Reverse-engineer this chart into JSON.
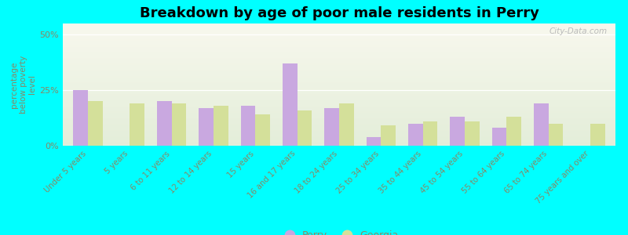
{
  "title": "Breakdown by age of poor male residents in Perry",
  "ylabel": "percentage\nbelow poverty\nlevel",
  "background_color": "#00ffff",
  "categories": [
    "Under 5 years",
    "5 years",
    "6 to 11 years",
    "12 to 14 years",
    "15 years",
    "16 and 17 years",
    "18 to 24 years",
    "25 to 34 years",
    "35 to 44 years",
    "45 to 54 years",
    "55 to 64 years",
    "65 to 74 years",
    "75 years and over"
  ],
  "perry_values": [
    25,
    0,
    20,
    17,
    18,
    37,
    17,
    4,
    10,
    13,
    8,
    19,
    0
  ],
  "georgia_values": [
    20,
    19,
    19,
    18,
    14,
    16,
    19,
    9,
    11,
    11,
    13,
    10,
    10
  ],
  "perry_color": "#c9a8e0",
  "georgia_color": "#d4e09a",
  "bar_width": 0.35,
  "yticks": [
    0,
    25,
    50
  ],
  "ytick_labels": [
    "0%",
    "25%",
    "50%"
  ],
  "ylim": [
    0,
    55
  ],
  "watermark": "City-Data.com",
  "legend_perry": "Perry",
  "legend_georgia": "Georgia",
  "tick_color": "#888866",
  "ylabel_color": "#888866",
  "title_fontsize": 13,
  "tick_fontsize": 7.2,
  "ylabel_fontsize": 7.5
}
